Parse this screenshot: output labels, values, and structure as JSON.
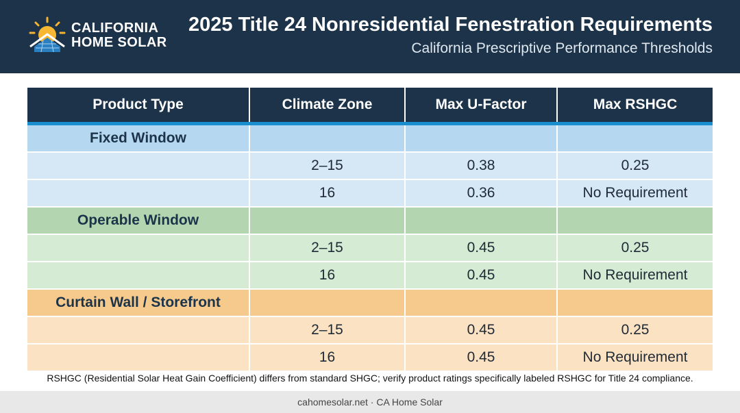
{
  "brand": {
    "line1": "CALIFORNIA",
    "line2": "HOME SOLAR",
    "icon": "sun-house-solar-panel-icon"
  },
  "header": {
    "title": "2025 Title 24 Nonresidential Fenestration Requirements",
    "subtitle": "California Prescriptive Performance Thresholds"
  },
  "table": {
    "columns": [
      "Product Type",
      "Climate Zone",
      "Max U-Factor",
      "Max RSHGC"
    ],
    "groups": [
      {
        "name": "Fixed Window",
        "color": "blue",
        "rows": [
          {
            "zone": "2–15",
            "u_factor": "0.38",
            "rshgc": "0.25"
          },
          {
            "zone": "16",
            "u_factor": "0.36",
            "rshgc": "No Requirement"
          }
        ]
      },
      {
        "name": "Operable Window",
        "color": "green",
        "rows": [
          {
            "zone": "2–15",
            "u_factor": "0.45",
            "rshgc": "0.25"
          },
          {
            "zone": "16",
            "u_factor": "0.45",
            "rshgc": "No Requirement"
          }
        ]
      },
      {
        "name": "Curtain Wall / Storefront",
        "color": "orange",
        "rows": [
          {
            "zone": "2–15",
            "u_factor": "0.45",
            "rshgc": "0.25"
          },
          {
            "zone": "16",
            "u_factor": "0.45",
            "rshgc": "No Requirement"
          }
        ]
      }
    ]
  },
  "footnote": "RSHGC (Residential Solar Heat Gain Coefficient) differs from standard SHGC; verify product ratings specifically labeled RSHGC for Title 24 compliance.",
  "footer": "cahomesolar.net · CA Home Solar",
  "colors": {
    "header_bg": "#1c3349",
    "accent_blue": "#1a8fd0",
    "fixed_group": "#b5d8f0",
    "operable_group": "#b3d6b0",
    "curtain_group": "#f6c98c"
  }
}
